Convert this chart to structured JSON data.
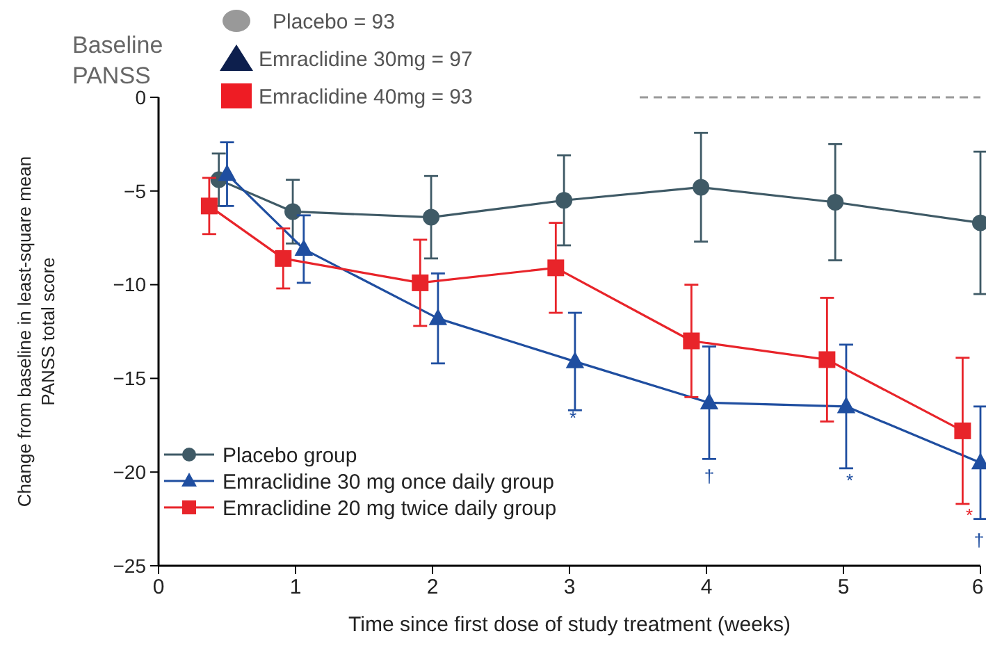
{
  "chart_data": {
    "type": "line",
    "xlabel": "Time since first dose of study treatment (weeks)",
    "ylabel": "Change from baseline in least-square mean PANSS total score",
    "xlim": [
      0,
      6
    ],
    "xticks": [
      0,
      1,
      2,
      3,
      4,
      5,
      6
    ],
    "ylim": [
      -25,
      0
    ],
    "yticks": [
      -25,
      -20,
      -15,
      -10,
      -5,
      0
    ],
    "series": [
      {
        "name": "Placebo group",
        "color": "#3f5a66",
        "marker": "circle",
        "x": [
          0.44,
          0.98,
          1.99,
          2.96,
          3.96,
          4.94,
          6
        ],
        "values": [
          -4.4,
          -6.1,
          -6.4,
          -5.5,
          -4.8,
          -5.6,
          -6.7
        ],
        "errors": [
          1.4,
          1.7,
          2.2,
          2.4,
          2.9,
          3.1,
          3.8
        ]
      },
      {
        "name": "Emraclidine 30 mg once daily group",
        "color": "#1f4ea0",
        "marker": "triangle",
        "x": [
          0.5,
          1.06,
          2.04,
          3.04,
          4.02,
          5.02,
          6
        ],
        "values": [
          -4.1,
          -8.1,
          -11.8,
          -14.1,
          -16.3,
          -16.5,
          -19.5
        ],
        "errors": [
          1.7,
          1.8,
          2.4,
          2.6,
          3.0,
          3.3,
          3.0
        ]
      },
      {
        "name": "Emraclidine 20 mg twice daily group",
        "color": "#e8242a",
        "marker": "square",
        "x": [
          0.37,
          0.91,
          1.91,
          2.9,
          3.89,
          4.88,
          5.87
        ],
        "values": [
          -5.8,
          -8.6,
          -9.9,
          -9.1,
          -13.0,
          -14.0,
          -17.8
        ],
        "errors": [
          1.5,
          1.6,
          2.3,
          2.4,
          3.0,
          3.3,
          3.9
        ]
      }
    ],
    "ref_lines": [
      {
        "axis": "y",
        "value": 0,
        "color": "#999999",
        "line_style": "dashed"
      }
    ],
    "annotations": [
      "Baseline PANSS",
      "Placebo = 93",
      "Emraclidine 30mg  = 97",
      "Emraclidine 40mg  = 93",
      "*",
      "†",
      "*",
      "*",
      "†"
    ],
    "legend": "bottom left",
    "grid": false,
    "line_style": "solid"
  }
}
